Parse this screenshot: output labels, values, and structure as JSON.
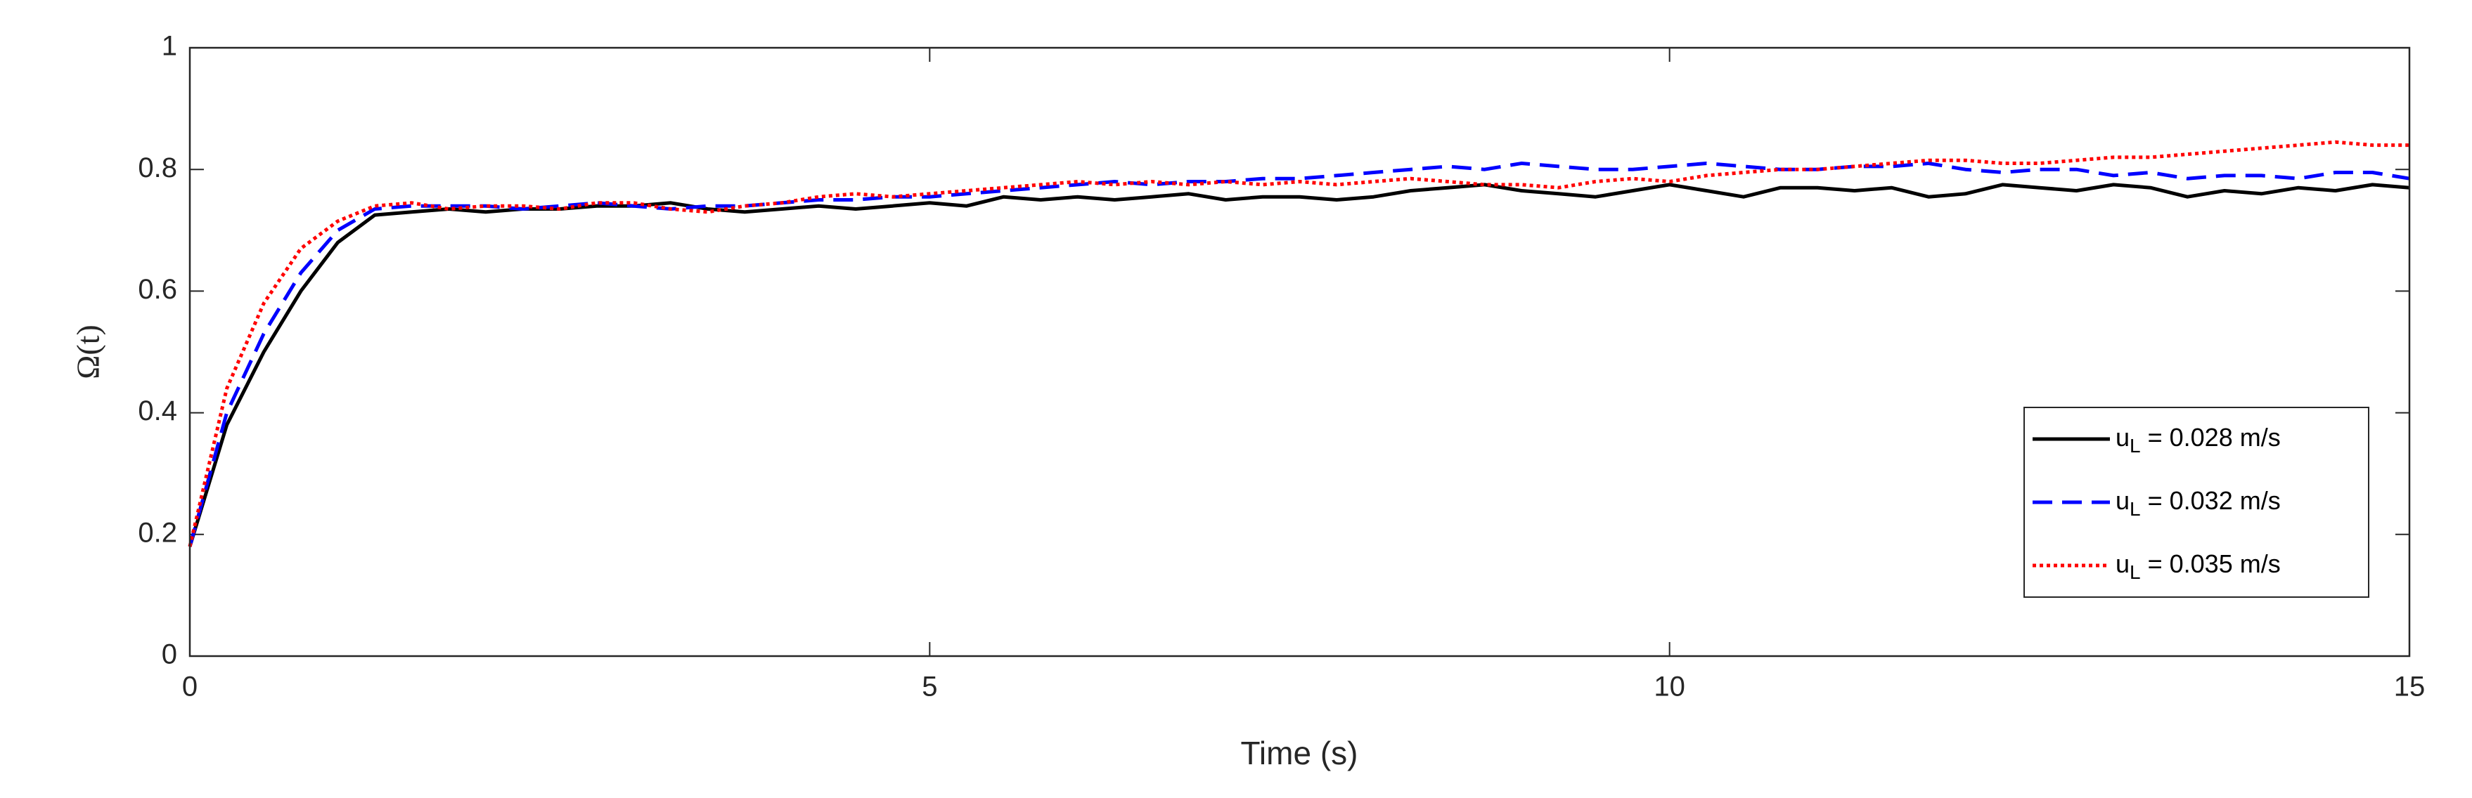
{
  "chart_data": {
    "type": "line",
    "xlabel": "Time (s)",
    "ylabel": "Ω(t)",
    "x": [
      0,
      0.25,
      0.5,
      0.75,
      1,
      1.25,
      1.5,
      1.75,
      2,
      2.25,
      2.5,
      2.75,
      3,
      3.25,
      3.5,
      3.75,
      4,
      4.25,
      4.5,
      4.75,
      5,
      5.25,
      5.5,
      5.75,
      6,
      6.25,
      6.5,
      6.75,
      7,
      7.25,
      7.5,
      7.75,
      8,
      8.25,
      8.5,
      8.75,
      9,
      9.25,
      9.5,
      9.75,
      10,
      10.25,
      10.5,
      10.75,
      11,
      11.25,
      11.5,
      11.75,
      12,
      12.25,
      12.5,
      12.75,
      13,
      13.25,
      13.5,
      13.75,
      14,
      14.25,
      14.5,
      14.75,
      15
    ],
    "series": [
      {
        "name": "uL = 0.028 m/s",
        "color": "#000000",
        "linestyle": "solid",
        "values": [
          0.18,
          0.38,
          0.5,
          0.6,
          0.68,
          0.725,
          0.73,
          0.735,
          0.73,
          0.735,
          0.735,
          0.74,
          0.74,
          0.745,
          0.735,
          0.73,
          0.735,
          0.74,
          0.735,
          0.74,
          0.745,
          0.74,
          0.755,
          0.75,
          0.755,
          0.75,
          0.755,
          0.76,
          0.75,
          0.755,
          0.755,
          0.75,
          0.755,
          0.765,
          0.77,
          0.775,
          0.765,
          0.76,
          0.755,
          0.765,
          0.775,
          0.765,
          0.755,
          0.77,
          0.77,
          0.765,
          0.77,
          0.755,
          0.76,
          0.775,
          0.77,
          0.765,
          0.775,
          0.77,
          0.755,
          0.765,
          0.76,
          0.77,
          0.765,
          0.775,
          0.77
        ]
      },
      {
        "name": "uL = 0.032 m/s",
        "color": "#0000ff",
        "linestyle": "dashed",
        "values": [
          0.18,
          0.4,
          0.53,
          0.63,
          0.7,
          0.735,
          0.74,
          0.74,
          0.74,
          0.735,
          0.74,
          0.745,
          0.74,
          0.735,
          0.74,
          0.74,
          0.745,
          0.75,
          0.75,
          0.755,
          0.755,
          0.76,
          0.765,
          0.77,
          0.775,
          0.78,
          0.775,
          0.78,
          0.78,
          0.785,
          0.785,
          0.79,
          0.795,
          0.8,
          0.805,
          0.8,
          0.81,
          0.805,
          0.8,
          0.8,
          0.805,
          0.81,
          0.805,
          0.8,
          0.8,
          0.805,
          0.805,
          0.81,
          0.8,
          0.795,
          0.8,
          0.8,
          0.79,
          0.795,
          0.785,
          0.79,
          0.79,
          0.785,
          0.795,
          0.795,
          0.785
        ]
      },
      {
        "name": "uL = 0.035 m/s",
        "color": "#ff0000",
        "linestyle": "dotted",
        "values": [
          0.18,
          0.44,
          0.58,
          0.67,
          0.715,
          0.74,
          0.745,
          0.735,
          0.74,
          0.74,
          0.735,
          0.745,
          0.745,
          0.735,
          0.73,
          0.74,
          0.745,
          0.755,
          0.76,
          0.755,
          0.76,
          0.765,
          0.77,
          0.775,
          0.78,
          0.775,
          0.78,
          0.775,
          0.78,
          0.775,
          0.78,
          0.775,
          0.78,
          0.785,
          0.78,
          0.775,
          0.775,
          0.77,
          0.78,
          0.785,
          0.78,
          0.79,
          0.795,
          0.8,
          0.8,
          0.805,
          0.81,
          0.815,
          0.815,
          0.81,
          0.81,
          0.815,
          0.82,
          0.82,
          0.825,
          0.83,
          0.835,
          0.84,
          0.845,
          0.84,
          0.84
        ]
      }
    ],
    "xlim": [
      0,
      15
    ],
    "xticks": [
      0,
      5,
      10,
      15
    ],
    "ylim": [
      0,
      1
    ],
    "yticks": [
      0,
      0.2,
      0.4,
      0.6,
      0.8,
      1
    ],
    "grid": false,
    "legend": "right"
  }
}
